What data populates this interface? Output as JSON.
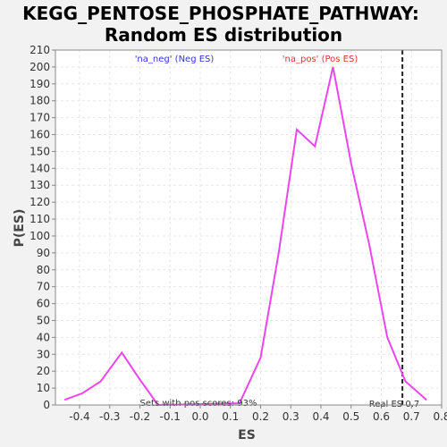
{
  "chart_data": {
    "type": "line",
    "title_line1": "KEGG_PENTOSE_PHOSPHATE_PATHWAY:",
    "title_line2": "Random ES distribution",
    "xlabel": "ES",
    "ylabel": "P(ES)",
    "xlim": [
      -0.48,
      0.8
    ],
    "ylim": [
      0,
      210
    ],
    "x_ticks": [
      "-0.4",
      "-0.3",
      "-0.2",
      "-0.1",
      "0.0",
      "0.1",
      "0.2",
      "0.3",
      "0.4",
      "0.5",
      "0.6",
      "0.7",
      "0.8"
    ],
    "x_tick_values": [
      -0.4,
      -0.3,
      -0.2,
      -0.1,
      0.0,
      0.1,
      0.2,
      0.3,
      0.4,
      0.5,
      0.6,
      0.7,
      0.8
    ],
    "y_ticks": [
      "0",
      "10",
      "20",
      "30",
      "40",
      "50",
      "60",
      "70",
      "80",
      "90",
      "100",
      "110",
      "120",
      "130",
      "140",
      "150",
      "160",
      "170",
      "180",
      "190",
      "200",
      "210"
    ],
    "y_tick_values": [
      0,
      10,
      20,
      30,
      40,
      50,
      60,
      70,
      80,
      90,
      100,
      110,
      120,
      130,
      140,
      150,
      160,
      170,
      180,
      190,
      200,
      210
    ],
    "grid": true,
    "series": [
      {
        "color": "#ee44ee",
        "points": [
          {
            "x": -0.45,
            "y": 3
          },
          {
            "x": -0.39,
            "y": 7
          },
          {
            "x": -0.33,
            "y": 14
          },
          {
            "x": -0.26,
            "y": 31
          },
          {
            "x": -0.2,
            "y": 15
          },
          {
            "x": -0.14,
            "y": 0
          },
          {
            "x": 0.13,
            "y": 1
          },
          {
            "x": 0.2,
            "y": 28
          },
          {
            "x": 0.26,
            "y": 90
          },
          {
            "x": 0.32,
            "y": 163
          },
          {
            "x": 0.38,
            "y": 153
          },
          {
            "x": 0.44,
            "y": 200
          },
          {
            "x": 0.5,
            "y": 143
          },
          {
            "x": 0.56,
            "y": 95
          },
          {
            "x": 0.62,
            "y": 40
          },
          {
            "x": 0.68,
            "y": 14
          },
          {
            "x": 0.75,
            "y": 3
          }
        ]
      }
    ],
    "real_es": 0.67,
    "real_es_color": "#222222",
    "annotations": {
      "neg_label": "'na_neg' (Neg ES)",
      "neg_color": "#3333dd",
      "pos_label": "'na_pos' (Pos ES)",
      "pos_color": "#dd3333",
      "pos_scores": "Sets with pos scores: 93%",
      "real_es_label": "Real ES 0.7"
    }
  }
}
